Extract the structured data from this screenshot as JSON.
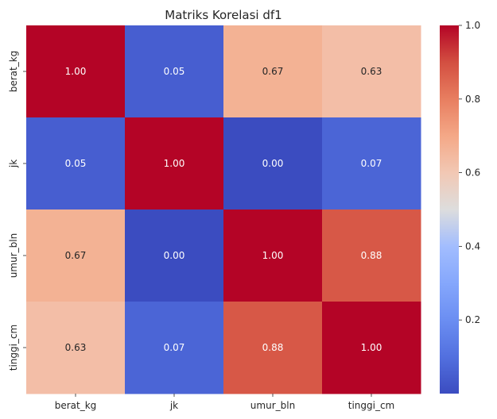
{
  "chart_data": {
    "type": "heatmap",
    "title": "Matriks Korelasi df1",
    "x_categories": [
      "berat_kg",
      "jk",
      "umur_bln",
      "tinggi_cm"
    ],
    "y_categories": [
      "berat_kg",
      "jk",
      "umur_bln",
      "tinggi_cm"
    ],
    "values": [
      [
        1.0,
        0.05,
        0.67,
        0.63
      ],
      [
        0.05,
        1.0,
        0.0,
        0.07
      ],
      [
        0.67,
        0.0,
        1.0,
        0.88
      ],
      [
        0.63,
        0.07,
        0.88,
        1.0
      ]
    ],
    "cell_labels": [
      [
        "1.00",
        "0.05",
        "0.67",
        "0.63"
      ],
      [
        "0.05",
        "1.00",
        "0.00",
        "0.07"
      ],
      [
        "0.67",
        "0.00",
        "1.00",
        "0.88"
      ],
      [
        "0.63",
        "0.07",
        "0.88",
        "1.00"
      ]
    ],
    "colormap": "coolwarm",
    "colorbar": {
      "range": [
        0.0,
        1.0
      ],
      "ticks": [
        0.2,
        0.4,
        0.6,
        0.8,
        1.0
      ],
      "tick_labels": [
        "0.2",
        "0.4",
        "0.6",
        "0.8",
        "1.0"
      ]
    },
    "xlabel": "",
    "ylabel": ""
  }
}
